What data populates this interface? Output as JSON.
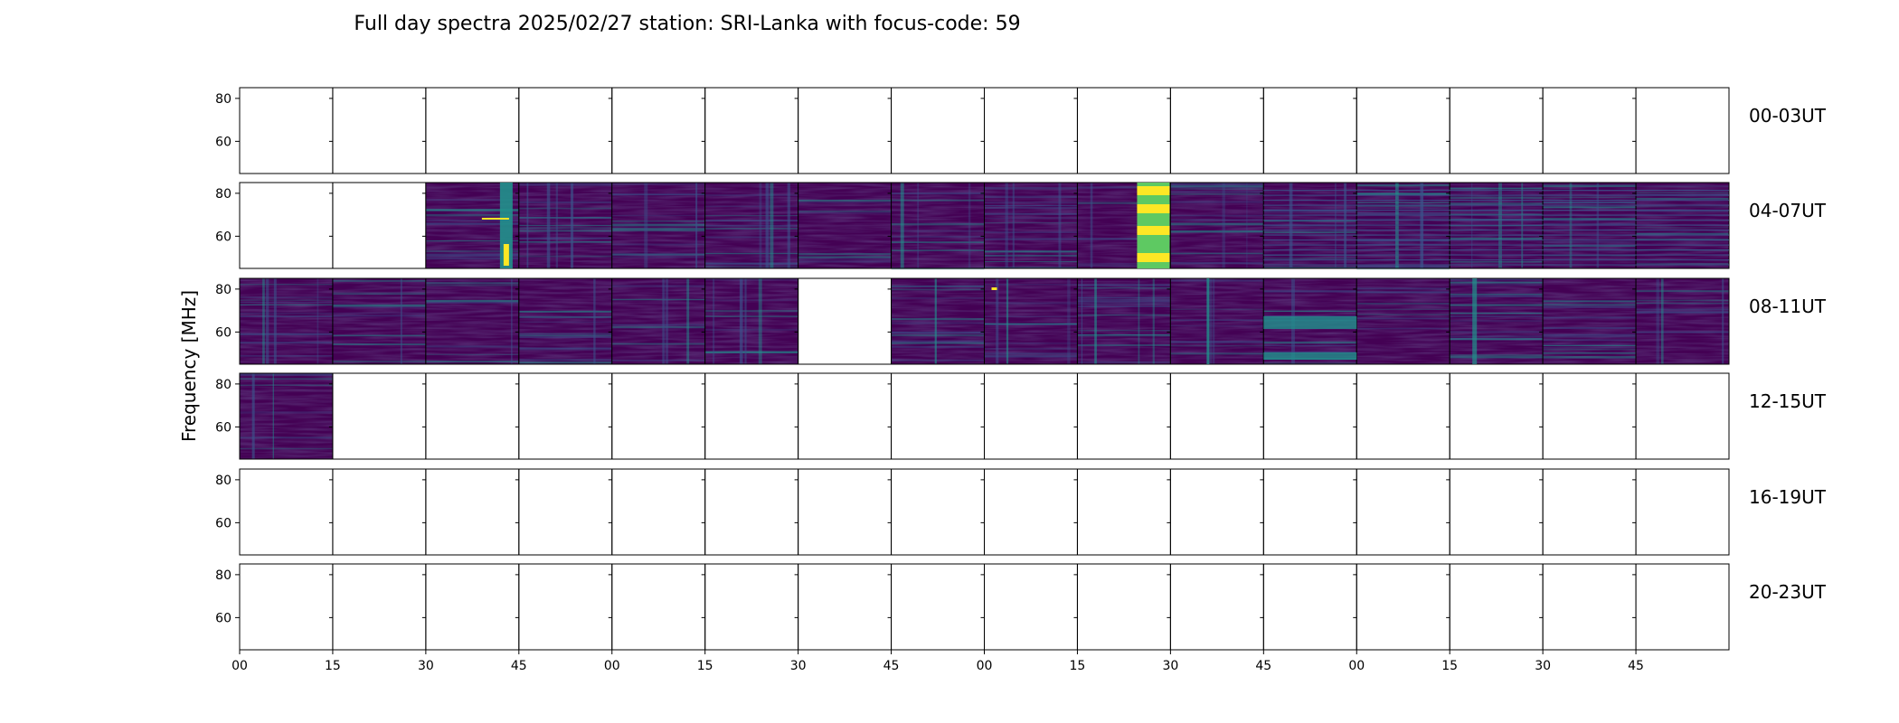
{
  "chart_data": {
    "type": "heatmap",
    "title": "Full day spectra 2025/02/27 station: SRI-Lanka with focus-code: 59",
    "ylabel": "Frequency [MHz]",
    "ylim": [
      45,
      85
    ],
    "yticks": [
      "80",
      "60"
    ],
    "xticks": [
      "00",
      "15",
      "30",
      "45",
      "00",
      "15",
      "30",
      "45",
      "00",
      "15",
      "30",
      "45",
      "00",
      "15",
      "30",
      "45"
    ],
    "row_labels": [
      "00-03UT",
      "04-07UT",
      "08-11UT",
      "12-15UT",
      "16-19UT",
      "20-23UT"
    ],
    "panels_per_row": 16,
    "panel_minutes": 15,
    "colormap": "viridis",
    "colors": {
      "low": "#440154",
      "mid_low": "#3b528b",
      "mid": "#21918c",
      "mid_high": "#5ec962",
      "high": "#fde725"
    },
    "data_coverage": [
      [
        0,
        0,
        0,
        0,
        0,
        0,
        0,
        0,
        0,
        0,
        0,
        0,
        0,
        0,
        0,
        0
      ],
      [
        0,
        0,
        1,
        1,
        1,
        1,
        1,
        1,
        1,
        1,
        1,
        1,
        1,
        1,
        1,
        1
      ],
      [
        1,
        1,
        1,
        1,
        1,
        1,
        0,
        1,
        1,
        1,
        1,
        1,
        1,
        1,
        1,
        1
      ],
      [
        1,
        0,
        0,
        0,
        0,
        0,
        0,
        0,
        0,
        0,
        0,
        0,
        0,
        0,
        0,
        0
      ],
      [
        0,
        0,
        0,
        0,
        0,
        0,
        0,
        0,
        0,
        0,
        0,
        0,
        0,
        0,
        0,
        0
      ],
      [
        0,
        0,
        0,
        0,
        0,
        0,
        0,
        0,
        0,
        0,
        0,
        0,
        0,
        0,
        0,
        0
      ]
    ],
    "grid": false,
    "legend": "none"
  }
}
